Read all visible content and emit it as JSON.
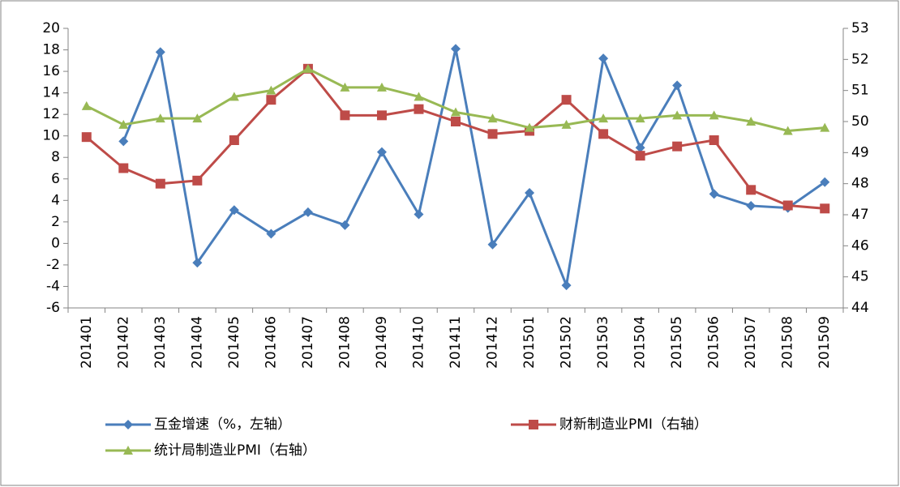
{
  "chart_data": {
    "type": "line",
    "categories": [
      "201401",
      "201402",
      "201403",
      "201404",
      "201405",
      "201406",
      "201407",
      "201408",
      "201409",
      "201410",
      "201411",
      "201412",
      "201501",
      "201502",
      "201503",
      "201504",
      "201505",
      "201506",
      "201507",
      "201508",
      "201509"
    ],
    "ylim": [
      -6,
      20
    ],
    "yticks": [
      -6,
      -4,
      -2,
      0,
      2,
      4,
      6,
      8,
      10,
      12,
      14,
      16,
      18,
      20
    ],
    "y2lim": [
      44,
      53
    ],
    "y2ticks": [
      44,
      45,
      46,
      47,
      48,
      49,
      50,
      51,
      52,
      53
    ],
    "series": [
      {
        "name": "互金增速（%，左轴）",
        "color": "#4a7ebb",
        "marker": "diamond",
        "values": [
          null,
          9.5,
          17.8,
          -1.8,
          3.1,
          0.9,
          2.9,
          1.7,
          8.5,
          2.7,
          18.1,
          -0.1,
          4.7,
          -3.9,
          17.2,
          8.9,
          14.7,
          4.6,
          3.5,
          3.3,
          5.7
        ]
      },
      {
        "name": "财新制造业PMI（右轴）",
        "color": "#be4b48",
        "marker": "square",
        "axis": "y2",
        "values": [
          49.5,
          48.5,
          48.0,
          48.1,
          49.4,
          50.7,
          51.7,
          50.2,
          50.2,
          50.4,
          50.0,
          49.6,
          49.7,
          50.7,
          49.6,
          48.9,
          49.2,
          49.4,
          47.8,
          47.3,
          47.2
        ]
      },
      {
        "name": "统计局制造业PMI（右轴）",
        "color": "#98b954",
        "marker": "triangle",
        "axis": "y2",
        "values": [
          50.5,
          49.9,
          50.1,
          50.1,
          50.8,
          51.0,
          51.7,
          51.1,
          51.1,
          50.8,
          50.3,
          50.1,
          49.8,
          49.9,
          50.1,
          50.1,
          50.2,
          50.2,
          50.0,
          49.7,
          49.8
        ]
      }
    ]
  }
}
